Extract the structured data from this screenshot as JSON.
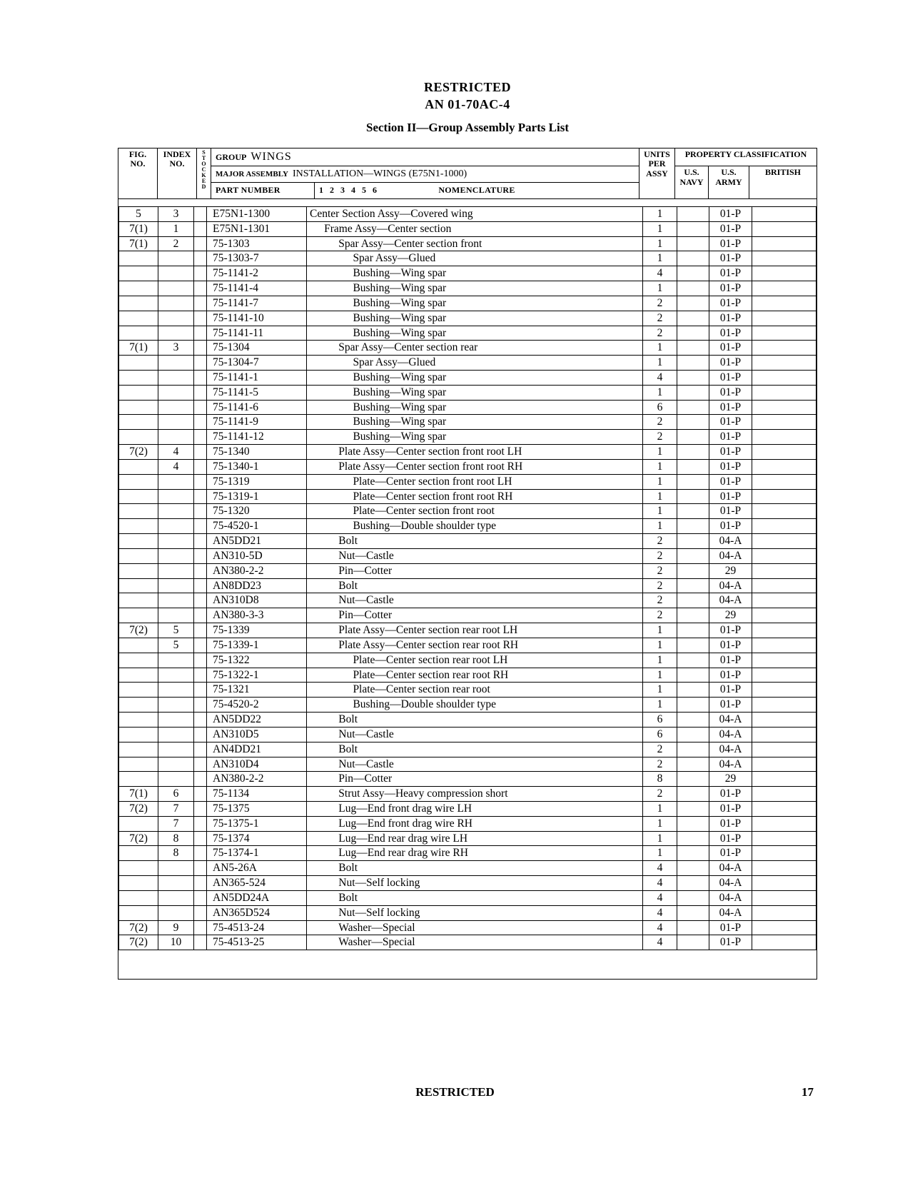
{
  "header": {
    "restricted": "RESTRICTED",
    "docnum": "AN 01-70AC-4",
    "section": "Section II—Group Assembly Parts List"
  },
  "table_header": {
    "fig_no": "FIG. NO.",
    "index_no": "INDEX NO.",
    "stocked": "STOCKED",
    "group_label": "GROUP",
    "group_value": "WINGS",
    "major_label": "MAJOR ASSEMBLY",
    "major_value": "INSTALLATION—WINGS  (E75N1-1000)",
    "part_number": "PART NUMBER",
    "nomen_cols": "1    2    3    4    5    6",
    "nomenclature": "NOMENCLATURE",
    "units": "UNITS PER ASSY",
    "prop_class": "PROPERTY CLASSIFICATION",
    "us_navy": "U.S. NAVY",
    "us_army": "U.S. ARMY",
    "british": "BRITISH"
  },
  "rows": [
    {
      "fig": "5",
      "idx": "3",
      "part": "E75N1-1300",
      "nom": "Center Section Assy—Covered wing",
      "indent": 1,
      "units": "1",
      "army": "01-P"
    },
    {
      "fig": "7(1)",
      "idx": "1",
      "part": "E75N1-1301",
      "nom": "Frame Assy—Center section",
      "indent": 2,
      "units": "1",
      "army": "01-P"
    },
    {
      "fig": "7(1)",
      "idx": "2",
      "part": "75-1303",
      "nom": "Spar Assy—Center section front",
      "indent": 3,
      "units": "1",
      "army": "01-P"
    },
    {
      "fig": "",
      "idx": "",
      "part": "75-1303-7",
      "nom": "Spar Assy—Glued",
      "indent": 4,
      "units": "1",
      "army": "01-P"
    },
    {
      "fig": "",
      "idx": "",
      "part": "75-1141-2",
      "nom": "Bushing—Wing spar",
      "indent": 4,
      "units": "4",
      "army": "01-P"
    },
    {
      "fig": "",
      "idx": "",
      "part": "75-1141-4",
      "nom": "Bushing—Wing spar",
      "indent": 4,
      "units": "1",
      "army": "01-P"
    },
    {
      "fig": "",
      "idx": "",
      "part": "75-1141-7",
      "nom": "Bushing—Wing spar",
      "indent": 4,
      "units": "2",
      "army": "01-P"
    },
    {
      "fig": "",
      "idx": "",
      "part": "75-1141-10",
      "nom": "Bushing—Wing spar",
      "indent": 4,
      "units": "2",
      "army": "01-P"
    },
    {
      "fig": "",
      "idx": "",
      "part": "75-1141-11",
      "nom": "Bushing—Wing spar",
      "indent": 4,
      "units": "2",
      "army": "01-P"
    },
    {
      "fig": "7(1)",
      "idx": "3",
      "part": "75-1304",
      "nom": "Spar Assy—Center section rear",
      "indent": 3,
      "units": "1",
      "army": "01-P"
    },
    {
      "fig": "",
      "idx": "",
      "part": "75-1304-7",
      "nom": "Spar Assy—Glued",
      "indent": 4,
      "units": "1",
      "army": "01-P"
    },
    {
      "fig": "",
      "idx": "",
      "part": "75-1141-1",
      "nom": "Bushing—Wing spar",
      "indent": 4,
      "units": "4",
      "army": "01-P"
    },
    {
      "fig": "",
      "idx": "",
      "part": "75-1141-5",
      "nom": "Bushing—Wing spar",
      "indent": 4,
      "units": "1",
      "army": "01-P"
    },
    {
      "fig": "",
      "idx": "",
      "part": "75-1141-6",
      "nom": "Bushing—Wing spar",
      "indent": 4,
      "units": "6",
      "army": "01-P"
    },
    {
      "fig": "",
      "idx": "",
      "part": "75-1141-9",
      "nom": "Bushing—Wing spar",
      "indent": 4,
      "units": "2",
      "army": "01-P"
    },
    {
      "fig": "",
      "idx": "",
      "part": "75-1141-12",
      "nom": "Bushing—Wing spar",
      "indent": 4,
      "units": "2",
      "army": "01-P"
    },
    {
      "fig": "7(2)",
      "idx": "4",
      "part": "75-1340",
      "nom": "Plate Assy—Center section front root LH",
      "indent": 3,
      "units": "1",
      "army": "01-P"
    },
    {
      "fig": "",
      "idx": "4",
      "part": "75-1340-1",
      "nom": "Plate Assy—Center section front root RH",
      "indent": 3,
      "units": "1",
      "army": "01-P"
    },
    {
      "fig": "",
      "idx": "",
      "part": "75-1319",
      "nom": "Plate—Center section front root LH",
      "indent": 4,
      "units": "1",
      "army": "01-P"
    },
    {
      "fig": "",
      "idx": "",
      "part": "75-1319-1",
      "nom": "Plate—Center section front root RH",
      "indent": 4,
      "units": "1",
      "army": "01-P"
    },
    {
      "fig": "",
      "idx": "",
      "part": "75-1320",
      "nom": "Plate—Center section front root",
      "indent": 4,
      "units": "1",
      "army": "01-P"
    },
    {
      "fig": "",
      "idx": "",
      "part": "75-4520-1",
      "nom": "Bushing—Double shoulder type",
      "indent": 4,
      "units": "1",
      "army": "01-P"
    },
    {
      "fig": "",
      "idx": "",
      "part": "AN5DD21",
      "nom": "Bolt",
      "indent": 3,
      "units": "2",
      "army": "04-A"
    },
    {
      "fig": "",
      "idx": "",
      "part": "AN310-5D",
      "nom": "Nut—Castle",
      "indent": 3,
      "units": "2",
      "army": "04-A"
    },
    {
      "fig": "",
      "idx": "",
      "part": "AN380-2-2",
      "nom": "Pin—Cotter",
      "indent": 3,
      "units": "2",
      "army": "29"
    },
    {
      "fig": "",
      "idx": "",
      "part": "AN8DD23",
      "nom": "Bolt",
      "indent": 3,
      "units": "2",
      "army": "04-A"
    },
    {
      "fig": "",
      "idx": "",
      "part": "AN310D8",
      "nom": "Nut—Castle",
      "indent": 3,
      "units": "2",
      "army": "04-A"
    },
    {
      "fig": "",
      "idx": "",
      "part": "AN380-3-3",
      "nom": "Pin—Cotter",
      "indent": 3,
      "units": "2",
      "army": "29"
    },
    {
      "fig": "7(2)",
      "idx": "5",
      "part": "75-1339",
      "nom": "Plate Assy—Center section rear root LH",
      "indent": 3,
      "units": "1",
      "army": "01-P"
    },
    {
      "fig": "",
      "idx": "5",
      "part": "75-1339-1",
      "nom": "Plate Assy—Center section rear root RH",
      "indent": 3,
      "units": "1",
      "army": "01-P"
    },
    {
      "fig": "",
      "idx": "",
      "part": "75-1322",
      "nom": "Plate—Center section rear root LH",
      "indent": 4,
      "units": "1",
      "army": "01-P"
    },
    {
      "fig": "",
      "idx": "",
      "part": "75-1322-1",
      "nom": "Plate—Center section rear root RH",
      "indent": 4,
      "units": "1",
      "army": "01-P"
    },
    {
      "fig": "",
      "idx": "",
      "part": "75-1321",
      "nom": "Plate—Center section rear root",
      "indent": 4,
      "units": "1",
      "army": "01-P"
    },
    {
      "fig": "",
      "idx": "",
      "part": "75-4520-2",
      "nom": "Bushing—Double shoulder type",
      "indent": 4,
      "units": "1",
      "army": "01-P"
    },
    {
      "fig": "",
      "idx": "",
      "part": "AN5DD22",
      "nom": "Bolt",
      "indent": 3,
      "units": "6",
      "army": "04-A"
    },
    {
      "fig": "",
      "idx": "",
      "part": "AN310D5",
      "nom": "Nut—Castle",
      "indent": 3,
      "units": "6",
      "army": "04-A"
    },
    {
      "fig": "",
      "idx": "",
      "part": "AN4DD21",
      "nom": "Bolt",
      "indent": 3,
      "units": "2",
      "army": "04-A"
    },
    {
      "fig": "",
      "idx": "",
      "part": "AN310D4",
      "nom": "Nut—Castle",
      "indent": 3,
      "units": "2",
      "army": "04-A"
    },
    {
      "fig": "",
      "idx": "",
      "part": "AN380-2-2",
      "nom": "Pin—Cotter",
      "indent": 3,
      "units": "8",
      "army": "29"
    },
    {
      "fig": "7(1)",
      "idx": "6",
      "part": "75-1134",
      "nom": "Strut Assy—Heavy compression short",
      "indent": 3,
      "units": "2",
      "army": "01-P"
    },
    {
      "fig": "7(2)",
      "idx": "7",
      "part": "75-1375",
      "nom": "Lug—End front drag wire LH",
      "indent": 3,
      "units": "1",
      "army": "01-P"
    },
    {
      "fig": "",
      "idx": "7",
      "part": "75-1375-1",
      "nom": "Lug—End front drag wire RH",
      "indent": 3,
      "units": "1",
      "army": "01-P"
    },
    {
      "fig": "7(2)",
      "idx": "8",
      "part": "75-1374",
      "nom": "Lug—End rear drag wire LH",
      "indent": 3,
      "units": "1",
      "army": "01-P"
    },
    {
      "fig": "",
      "idx": "8",
      "part": "75-1374-1",
      "nom": "Lug—End rear drag wire RH",
      "indent": 3,
      "units": "1",
      "army": "01-P"
    },
    {
      "fig": "",
      "idx": "",
      "part": "AN5-26A",
      "nom": "Bolt",
      "indent": 3,
      "units": "4",
      "army": "04-A"
    },
    {
      "fig": "",
      "idx": "",
      "part": "AN365-524",
      "nom": "Nut—Self locking",
      "indent": 3,
      "units": "4",
      "army": "04-A"
    },
    {
      "fig": "",
      "idx": "",
      "part": "AN5DD24A",
      "nom": "Bolt",
      "indent": 3,
      "units": "4",
      "army": "04-A"
    },
    {
      "fig": "",
      "idx": "",
      "part": "AN365D524",
      "nom": "Nut—Self locking",
      "indent": 3,
      "units": "4",
      "army": "04-A"
    },
    {
      "fig": "7(2)",
      "idx": "9",
      "part": "75-4513-24",
      "nom": "Washer—Special",
      "indent": 3,
      "units": "4",
      "army": "01-P"
    },
    {
      "fig": "7(2)",
      "idx": "10",
      "part": "75-4513-25",
      "nom": "Washer—Special",
      "indent": 3,
      "units": "4",
      "army": "01-P"
    }
  ],
  "footer": {
    "restricted": "RESTRICTED",
    "page": "17"
  }
}
